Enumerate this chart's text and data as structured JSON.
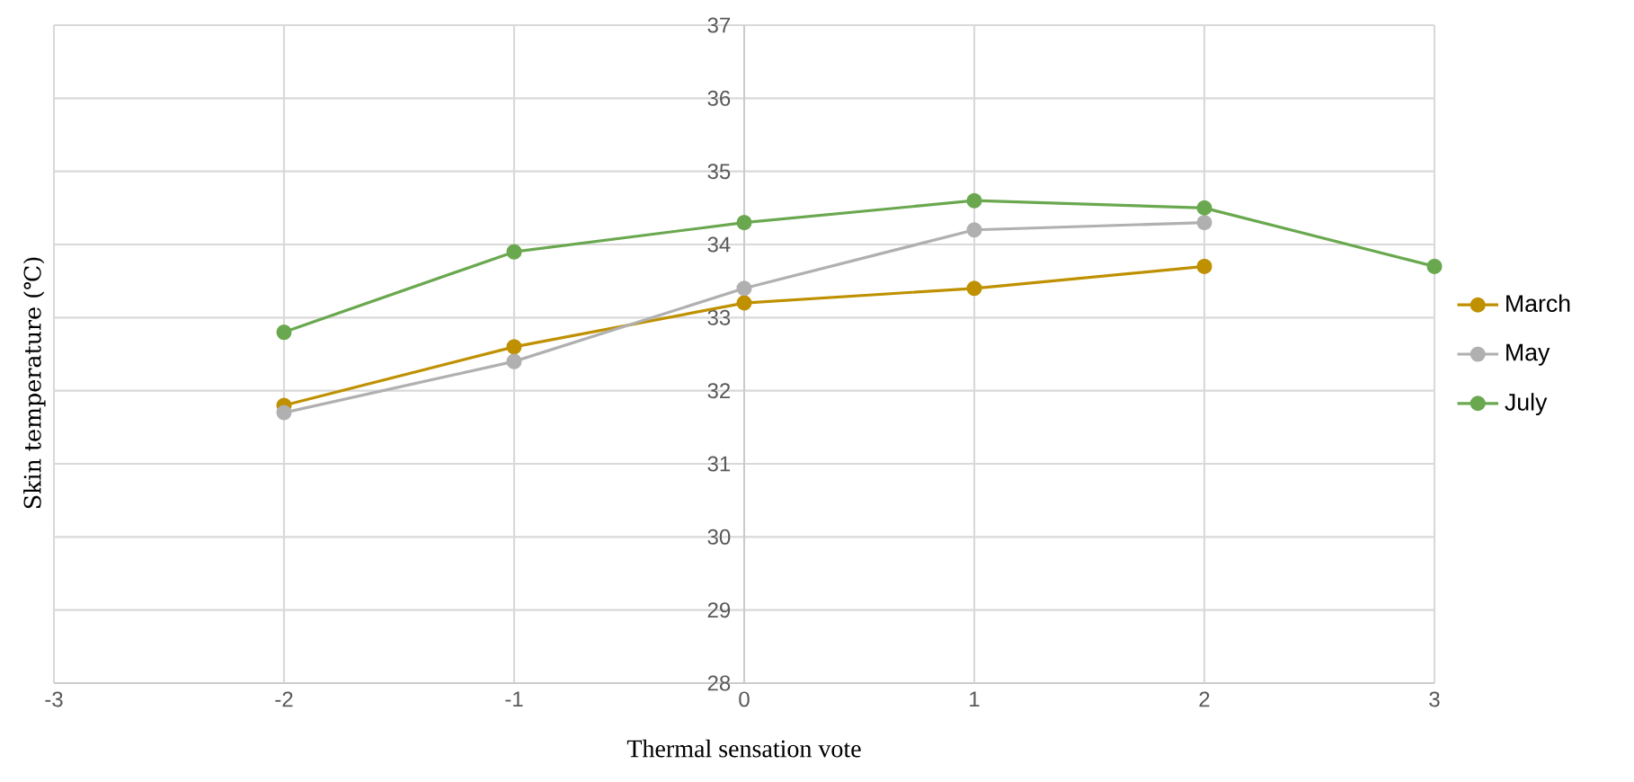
{
  "chart_data": {
    "type": "line",
    "xlabel": "Thermal sensation vote",
    "ylabel": "Skin temperature (℃)",
    "x": [
      -2,
      -1,
      0,
      1,
      2,
      3
    ],
    "series": [
      {
        "name": "March",
        "color": "#bf9000",
        "values": [
          31.8,
          32.6,
          33.2,
          33.4,
          33.7,
          null
        ]
      },
      {
        "name": "May",
        "color": "#b0b0b0",
        "values": [
          31.7,
          32.4,
          33.4,
          34.2,
          34.3,
          null
        ]
      },
      {
        "name": "July",
        "color": "#6aa84f",
        "values": [
          32.8,
          33.9,
          34.3,
          34.6,
          34.5,
          33.7
        ]
      }
    ],
    "xlim": [
      -3,
      3
    ],
    "xticks": [
      -3,
      -2,
      -1,
      0,
      1,
      2,
      3
    ],
    "ylim": [
      28,
      37
    ],
    "yticks": [
      28,
      29,
      30,
      31,
      32,
      33,
      34,
      35,
      36,
      37
    ],
    "grid": true,
    "legend": "right",
    "marker": "circle",
    "line_style": "solid"
  }
}
